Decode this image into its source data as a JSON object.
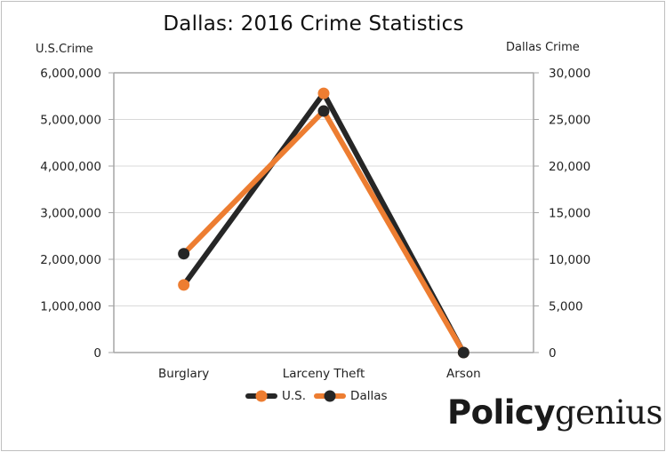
{
  "chart_data": {
    "type": "line",
    "title": "Dallas: 2016 Crime Statistics",
    "categories": [
      "Burglary",
      "Larceny Theft",
      "Arson"
    ],
    "series": [
      {
        "name": "U.S.",
        "axis": "left",
        "values": [
          1450000,
          5560000,
          0
        ],
        "line_color": "#262626",
        "marker_color": "#ED7D31"
      },
      {
        "name": "Dallas",
        "axis": "right",
        "values": [
          10600,
          25900,
          0
        ],
        "line_color": "#ED7D31",
        "marker_color": "#262626"
      }
    ],
    "left_axis": {
      "label": "U.S.Crime",
      "ylim": [
        0,
        6000000
      ],
      "ticks": [
        "0",
        "1,000,000",
        "2,000,000",
        "3,000,000",
        "4,000,000",
        "5,000,000",
        "6,000,000"
      ]
    },
    "right_axis": {
      "label": "Dallas Crime",
      "ylim": [
        0,
        30000
      ],
      "ticks": [
        "0",
        "5,000",
        "10,000",
        "15,000",
        "20,000",
        "25,000",
        "30,000"
      ]
    },
    "grid": true,
    "legend_position": "bottom"
  },
  "legend": {
    "us_label": "U.S.",
    "dallas_label": "Dallas"
  },
  "branding": {
    "logo_bold": "Policy",
    "logo_light": "genius"
  }
}
